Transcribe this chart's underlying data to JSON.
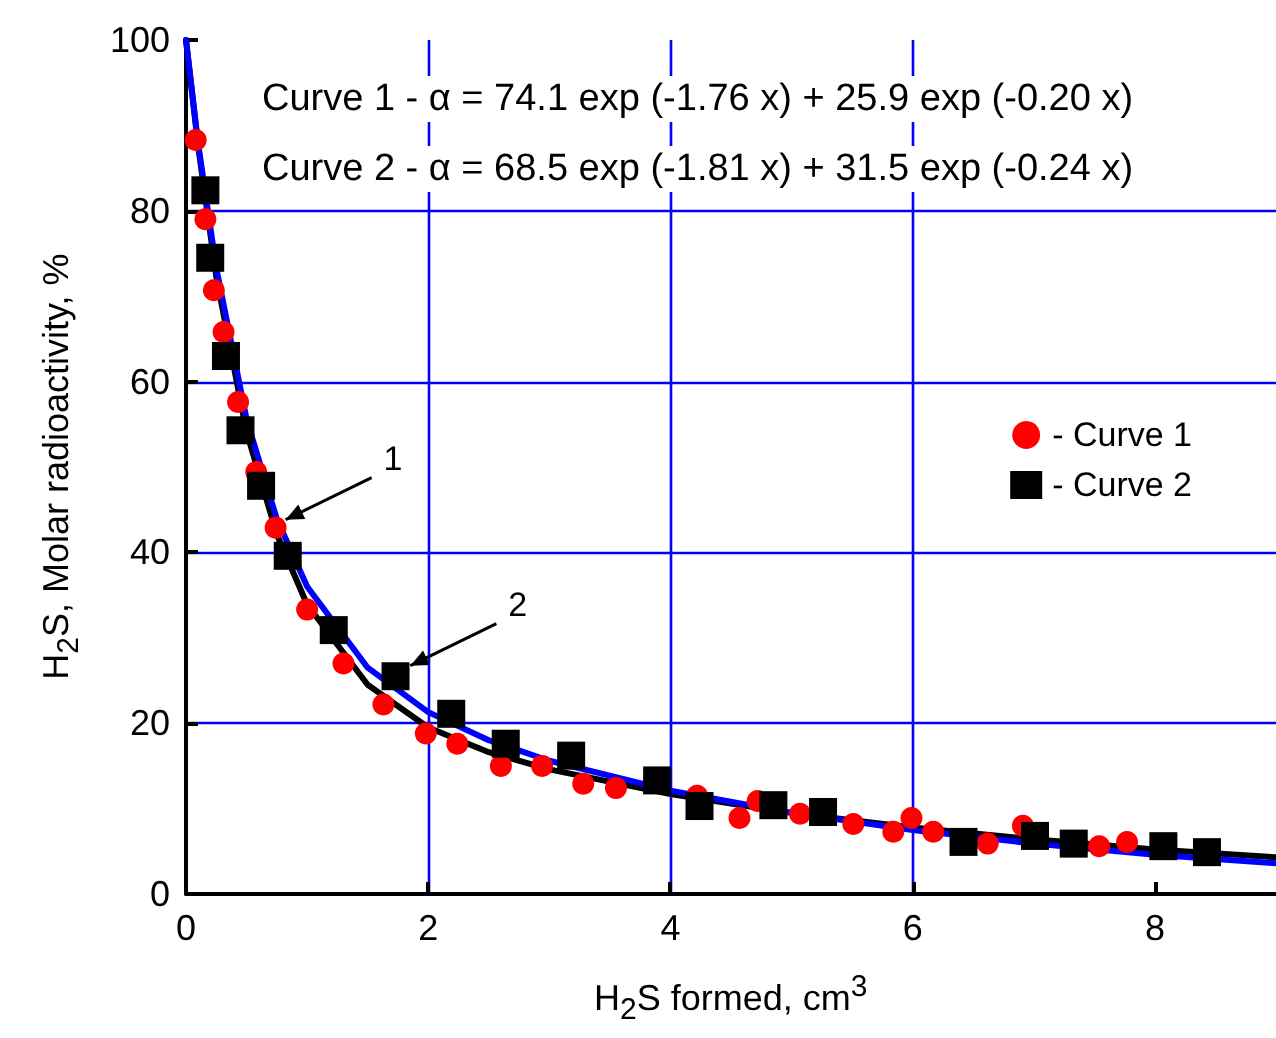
{
  "chart_data": {
    "type": "scatter",
    "xlabel": "H$_{2}$S formed, cm$^{3}$",
    "ylabel": "H$_{2}$S, Molar radioactivity, %",
    "xlim": [
      0,
      9
    ],
    "xticks": [
      0,
      2,
      4,
      6,
      8
    ],
    "ylim": [
      0,
      100
    ],
    "yticks": [
      0,
      20,
      40,
      60,
      80,
      100
    ],
    "grid": true,
    "legend": "right",
    "series": [
      {
        "type": "line",
        "marker": "none",
        "line_style": "solid",
        "color": "#000000",
        "x": [
          0,
          0.1,
          0.25,
          0.5,
          0.75,
          1,
          1.5,
          2,
          2.5,
          3,
          4,
          5,
          6,
          7,
          8,
          9
        ],
        "values": [
          100,
          87.6,
          72.3,
          54.1,
          42.1,
          33.9,
          24.5,
          19.5,
          16.6,
          14.6,
          11.7,
          9.5,
          7.8,
          6.4,
          5.2,
          4.3
        ]
      },
      {
        "type": "line",
        "marker": "none",
        "line_style": "solid",
        "color": "#0000ff",
        "x": [
          0,
          0.1,
          0.25,
          0.5,
          0.75,
          1,
          1.5,
          2,
          2.5,
          3,
          4,
          5,
          6,
          7,
          8,
          9
        ],
        "values": [
          100,
          87.9,
          73.3,
          55.6,
          43.9,
          36.0,
          26.5,
          21.3,
          18.0,
          15.6,
          12.1,
          9.5,
          7.5,
          5.9,
          4.6,
          3.6
        ]
      },
      {
        "name": "- Curve 1",
        "marker": "circle",
        "color": "#ff0000",
        "x": [
          0.08,
          0.16,
          0.23,
          0.31,
          0.43,
          0.58,
          0.74,
          1.0,
          1.3,
          1.63,
          1.98,
          2.24,
          2.6,
          2.94,
          3.28,
          3.55,
          4.22,
          4.57,
          4.72,
          5.07,
          5.51,
          5.84,
          5.99,
          6.17,
          6.62,
          6.91,
          7.54,
          7.77
        ],
        "values": [
          88.3,
          79,
          70.7,
          65.8,
          57.6,
          49.4,
          42.9,
          33.3,
          27,
          22.2,
          18.8,
          17.6,
          15,
          15,
          12.9,
          12.4,
          11.5,
          8.9,
          10.9,
          9.4,
          8.2,
          7.3,
          8.9,
          7.3,
          5.9,
          8.0,
          5.6,
          6.1
        ]
      },
      {
        "name": "- Curve 2",
        "marker": "square",
        "color": "#000000",
        "x": [
          0.16,
          0.2,
          0.33,
          0.45,
          0.62,
          0.84,
          1.22,
          1.73,
          2.19,
          2.64,
          3.18,
          3.89,
          4.24,
          4.85,
          5.26,
          6.42,
          7.01,
          7.33,
          8.07,
          8.43
        ],
        "values": [
          82.4,
          74.5,
          63,
          54.3,
          47.8,
          39.6,
          30.9,
          25.5,
          21.1,
          17.6,
          16.2,
          13.3,
          10.3,
          10.4,
          9.6,
          6.1,
          6.8,
          5.9,
          5.6,
          4.9
        ]
      }
    ],
    "annotations": [
      "Curve 1 - α = 74.1 exp (-1.76 x) + 25.9 exp (-0.20 x)",
      "Curve 2 - α = 68.5 exp (-1.81 x) + 31.5 exp (-0.24 x)",
      {
        "text": "1",
        "x": 0.74,
        "y": 42.9
      },
      {
        "text": "2",
        "x": 1.77,
        "y": 25.8
      }
    ]
  }
}
